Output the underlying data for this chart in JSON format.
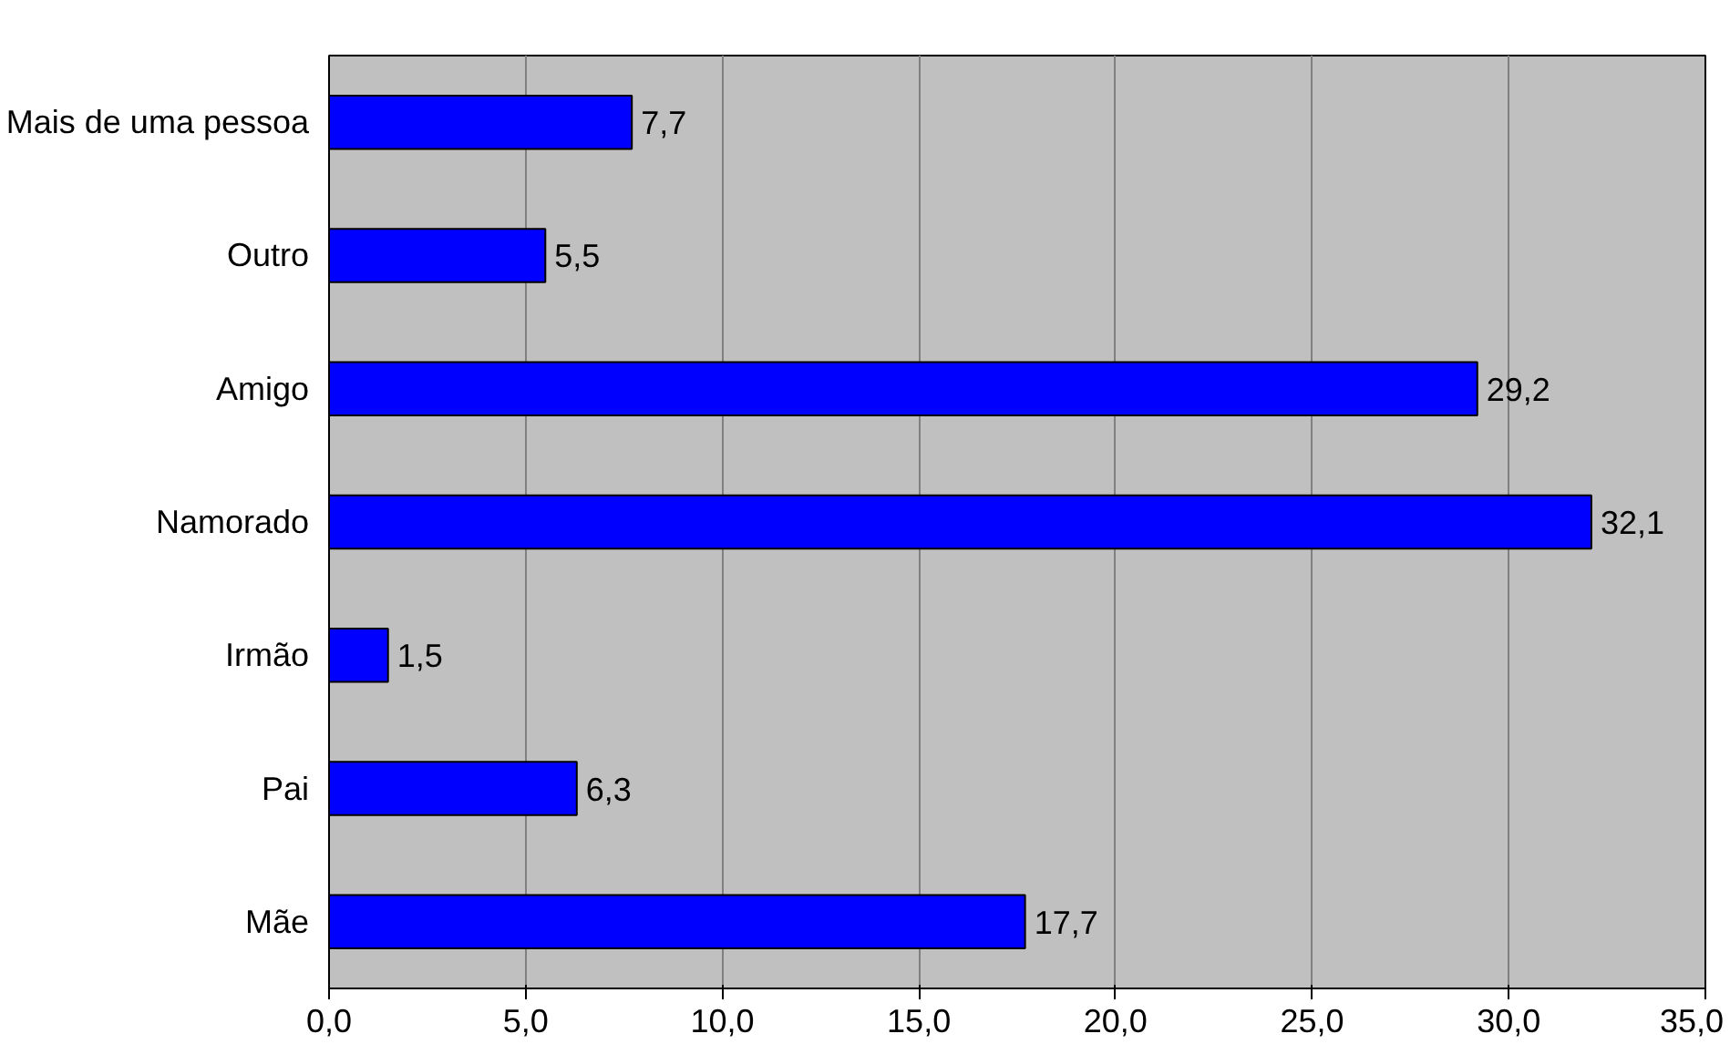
{
  "chart_data": {
    "type": "bar",
    "orientation": "horizontal",
    "categories": [
      "Mais de uma pessoa",
      "Outro",
      "Amigo",
      "Namorado",
      "Irmão",
      "Pai",
      "Mãe"
    ],
    "values": [
      7.7,
      5.5,
      29.2,
      32.1,
      1.5,
      6.3,
      17.7
    ],
    "value_labels": [
      "7,7",
      "5,5",
      "29,2",
      "32,1",
      "1,5",
      "6,3",
      "17,7"
    ],
    "color": "#0000ff",
    "xlim": [
      0,
      35
    ],
    "xticks": [
      {
        "value": 0,
        "label": "0,0"
      },
      {
        "value": 5,
        "label": "5,0"
      },
      {
        "value": 10,
        "label": "10,0"
      },
      {
        "value": 15,
        "label": "15,0"
      },
      {
        "value": 20,
        "label": "20,0"
      },
      {
        "value": 25,
        "label": "25,0"
      },
      {
        "value": 30,
        "label": "30,0"
      },
      {
        "value": 35,
        "label": "35,0"
      }
    ],
    "grid": "x"
  }
}
